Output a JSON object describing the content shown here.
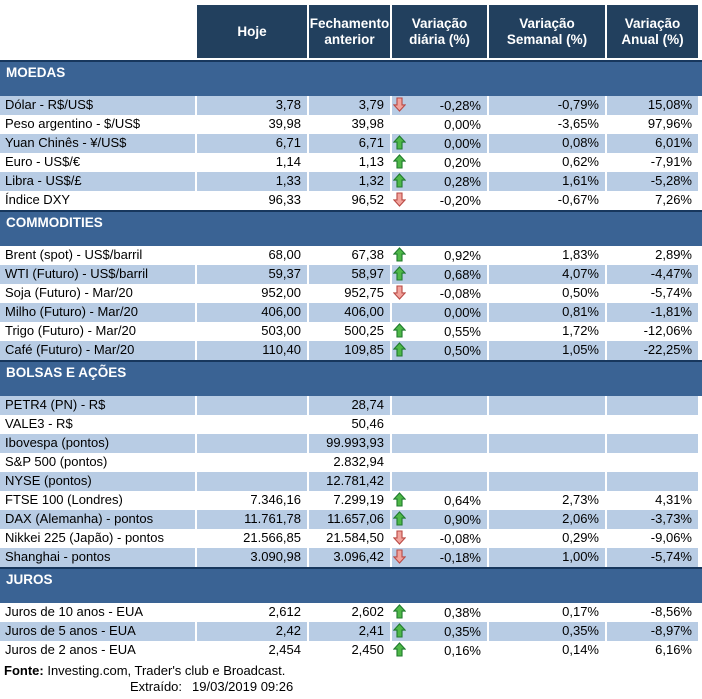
{
  "header": {
    "columns": [
      {
        "key": "hoje",
        "label": "Hoje"
      },
      {
        "key": "fechamento-anterior",
        "label": "Fechamento anterior"
      },
      {
        "key": "variacao-diaria",
        "label": "Variação diária (%)"
      },
      {
        "key": "variacao-semanal",
        "label": "Variação Semanal (%)"
      },
      {
        "key": "variacao-anual",
        "label": "Variação Anual (%)"
      }
    ]
  },
  "sections": [
    {
      "title": "MOEDAS",
      "rows": [
        {
          "label": "Dólar - R$/US$",
          "hoje": "3,78",
          "fechamento": "3,79",
          "arrow": "down",
          "var_diaria": "-0,28%",
          "var_semanal": "-0,79%",
          "var_anual": "15,08%",
          "shaded": true
        },
        {
          "label": "Peso argentino - $/US$",
          "hoje": "39,98",
          "fechamento": "39,98",
          "arrow": "none",
          "var_diaria": "0,00%",
          "var_semanal": "-3,65%",
          "var_anual": "97,96%",
          "shaded": false
        },
        {
          "label": "Yuan Chinês - ¥/US$",
          "hoje": "6,71",
          "fechamento": "6,71",
          "arrow": "up",
          "var_diaria": "0,00%",
          "var_semanal": "0,08%",
          "var_anual": "6,01%",
          "shaded": true
        },
        {
          "label": "Euro - US$/€",
          "hoje": "1,14",
          "fechamento": "1,13",
          "arrow": "up",
          "var_diaria": "0,20%",
          "var_semanal": "0,62%",
          "var_anual": "-7,91%",
          "shaded": false
        },
        {
          "label": "Libra - US$/£",
          "hoje": "1,33",
          "fechamento": "1,32",
          "arrow": "up",
          "var_diaria": "0,28%",
          "var_semanal": "1,61%",
          "var_anual": "-5,28%",
          "shaded": true
        },
        {
          "label": "Índice DXY",
          "hoje": "96,33",
          "fechamento": "96,52",
          "arrow": "down",
          "var_diaria": "-0,20%",
          "var_semanal": "-0,67%",
          "var_anual": "7,26%",
          "shaded": false
        }
      ]
    },
    {
      "title": "COMMODITIES",
      "rows": [
        {
          "label": "Brent (spot) - US$/barril",
          "hoje": "68,00",
          "fechamento": "67,38",
          "arrow": "up",
          "var_diaria": "0,92%",
          "var_semanal": "1,83%",
          "var_anual": "2,89%",
          "shaded": false
        },
        {
          "label": "WTI (Futuro) - US$/barril",
          "hoje": "59,37",
          "fechamento": "58,97",
          "arrow": "up",
          "var_diaria": "0,68%",
          "var_semanal": "4,07%",
          "var_anual": "-4,47%",
          "shaded": true
        },
        {
          "label": "Soja (Futuro) - Mar/20",
          "hoje": "952,00",
          "fechamento": "952,75",
          "arrow": "down",
          "var_diaria": "-0,08%",
          "var_semanal": "0,50%",
          "var_anual": "-5,74%",
          "shaded": false
        },
        {
          "label": "Milho (Futuro) - Mar/20",
          "hoje": "406,00",
          "fechamento": "406,00",
          "arrow": "none",
          "var_diaria": "0,00%",
          "var_semanal": "0,81%",
          "var_anual": "-1,81%",
          "shaded": true
        },
        {
          "label": "Trigo (Futuro) - Mar/20",
          "hoje": "503,00",
          "fechamento": "500,25",
          "arrow": "up",
          "var_diaria": "0,55%",
          "var_semanal": "1,72%",
          "var_anual": "-12,06%",
          "shaded": false
        },
        {
          "label": "Café (Futuro) - Mar/20",
          "hoje": "110,40",
          "fechamento": "109,85",
          "arrow": "up",
          "var_diaria": "0,50%",
          "var_semanal": "1,05%",
          "var_anual": "-22,25%",
          "shaded": true
        }
      ]
    },
    {
      "title": "BOLSAS E AÇÕES",
      "rows": [
        {
          "label": "PETR4 (PN) - R$",
          "hoje": "",
          "fechamento": "28,74",
          "arrow": "none",
          "var_diaria": "",
          "var_semanal": "",
          "var_anual": "",
          "shaded": true
        },
        {
          "label": "VALE3 - R$",
          "hoje": "",
          "fechamento": "50,46",
          "arrow": "none",
          "var_diaria": "",
          "var_semanal": "",
          "var_anual": "",
          "shaded": false
        },
        {
          "label": "Ibovespa (pontos)",
          "hoje": "",
          "fechamento": "99.993,93",
          "arrow": "none",
          "var_diaria": "",
          "var_semanal": "",
          "var_anual": "",
          "shaded": true
        },
        {
          "label": "S&P 500 (pontos)",
          "hoje": "",
          "fechamento": "2.832,94",
          "arrow": "none",
          "var_diaria": "",
          "var_semanal": "",
          "var_anual": "",
          "shaded": false
        },
        {
          "label": "NYSE (pontos)",
          "hoje": "",
          "fechamento": "12.781,42",
          "arrow": "none",
          "var_diaria": "",
          "var_semanal": "",
          "var_anual": "",
          "shaded": true
        },
        {
          "label": "FTSE 100 (Londres)",
          "hoje": "7.346,16",
          "fechamento": "7.299,19",
          "arrow": "up",
          "var_diaria": "0,64%",
          "var_semanal": "2,73%",
          "var_anual": "4,31%",
          "shaded": false
        },
        {
          "label": "DAX (Alemanha) - pontos",
          "hoje": "11.761,78",
          "fechamento": "11.657,06",
          "arrow": "up",
          "var_diaria": "0,90%",
          "var_semanal": "2,06%",
          "var_anual": "-3,73%",
          "shaded": true
        },
        {
          "label": "Nikkei 225 (Japão) - pontos",
          "hoje": "21.566,85",
          "fechamento": "21.584,50",
          "arrow": "down",
          "var_diaria": "-0,08%",
          "var_semanal": "0,29%",
          "var_anual": "-9,06%",
          "shaded": false
        },
        {
          "label": "Shanghai - pontos",
          "hoje": "3.090,98",
          "fechamento": "3.096,42",
          "arrow": "down",
          "var_diaria": "-0,18%",
          "var_semanal": "1,00%",
          "var_anual": "-5,74%",
          "shaded": true
        }
      ]
    },
    {
      "title": "JUROS",
      "rows": [
        {
          "label": "Juros de 10 anos - EUA",
          "hoje": "2,612",
          "fechamento": "2,602",
          "arrow": "up",
          "var_diaria": "0,38%",
          "var_semanal": "0,17%",
          "var_anual": "-8,56%",
          "shaded": false
        },
        {
          "label": "Juros de 5 anos - EUA",
          "hoje": "2,42",
          "fechamento": "2,41",
          "arrow": "up",
          "var_diaria": "0,35%",
          "var_semanal": "0,35%",
          "var_anual": "-8,97%",
          "shaded": true
        },
        {
          "label": "Juros de 2 anos - EUA",
          "hoje": "2,454",
          "fechamento": "2,450",
          "arrow": "up",
          "var_diaria": "0,16%",
          "var_semanal": "0,14%",
          "var_anual": "6,16%",
          "shaded": false
        }
      ]
    }
  ],
  "footer": {
    "fonte_label": "Fonte:",
    "fonte_text": " Investing.com, Trader's club e Broadcast.",
    "extraido_label": "Extraído:",
    "extraido_value": "19/03/2019 09:26"
  },
  "icons": {
    "up_arrow": "⬆",
    "down_arrow": "⬇"
  },
  "colors": {
    "header_bg": "#22405E",
    "header_text": "#FFFFFF",
    "band_bg": "#3A6394",
    "band_top_border": "#17375D",
    "row_shade": "#B8CCE4",
    "up_arrow_fill": "#4FB848",
    "up_arrow_stroke": "#1F7A2E",
    "down_arrow_fill": "#F2A39C",
    "down_arrow_stroke": "#B94A45"
  }
}
